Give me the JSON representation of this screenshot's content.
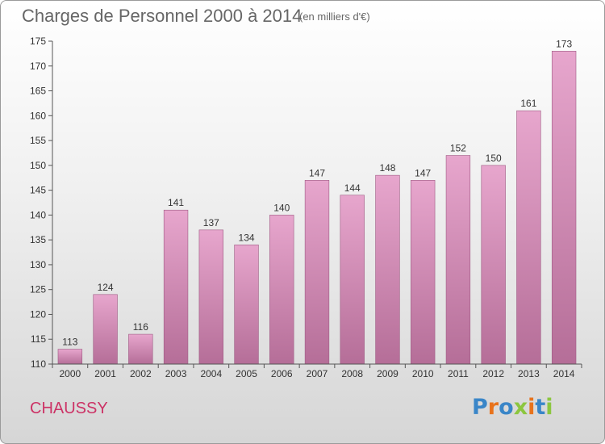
{
  "title": "Charges de Personnel 2000 à 2014",
  "subtitle": "(en milliers d'€)",
  "commune": "CHAUSSY",
  "logo": {
    "text": "Proxiti",
    "colors": [
      "#3a86c8",
      "#e8731c",
      "#3a86c8",
      "#8cc63f",
      "#e8731c",
      "#3a86c8",
      "#8cc63f"
    ]
  },
  "colors": {
    "bar_light": "#e7a6cd",
    "bar_dark": "#b56e98",
    "title": "#666666",
    "commune": "#cc3366"
  },
  "chart_data": {
    "type": "bar",
    "title": "Charges de Personnel 2000 à 2014",
    "subtitle": "(en milliers d'€)",
    "categories": [
      "2000",
      "2001",
      "2002",
      "2003",
      "2004",
      "2005",
      "2006",
      "2007",
      "2008",
      "2009",
      "2010",
      "2011",
      "2012",
      "2013",
      "2014"
    ],
    "values": [
      113,
      124,
      116,
      141,
      137,
      134,
      140,
      147,
      144,
      148,
      147,
      152,
      150,
      161,
      173
    ],
    "ylim": [
      110,
      175
    ],
    "yticks": [
      110,
      115,
      120,
      125,
      130,
      135,
      140,
      145,
      150,
      155,
      160,
      165,
      170,
      175
    ],
    "grid": false,
    "data_labels": true
  }
}
